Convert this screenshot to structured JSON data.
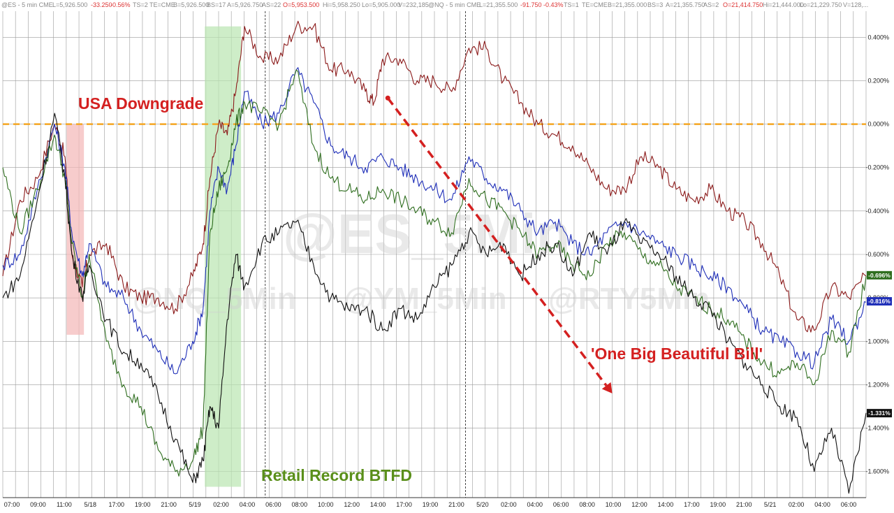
{
  "header": {
    "es": {
      "symbol": "@ES - 5 min CME",
      "L": "L=5,926.500",
      "chg": "-33.250",
      "pct": "-0.56%",
      "TS": "TS=2",
      "TE": "TE=CME",
      "B": "B=5,926.500",
      "BS": "BS=17",
      "A": "A=5,926.750",
      "AS": "AS=22",
      "O": "O=5,953.500",
      "Hi": "Hi=5,958.250",
      "Lo": "Lo=5,905.000",
      "V": "V=232,185"
    },
    "nq": {
      "symbol": "@NQ - 5 min CME",
      "L": "L=21,355.500",
      "chg": "-91.750",
      "pct": "-0.43%",
      "TS": "TS=1",
      "TE": "TE=CME",
      "B": "B=21,355.000",
      "BS": "BS=3",
      "A": "A=21,355.750",
      "AS": "AS=2",
      "O": "O=21,414.750",
      "Hi": "Hi=21,444.000",
      "Lo": "Lo=21,229.750",
      "V": "V=128,..."
    }
  },
  "watermarks": {
    "main": "@ES_5Min",
    "nq": "@NQ_5Min",
    "ym": "@YM_5Min",
    "rty": "@RTY5Min"
  },
  "annotations": {
    "downgrade": "USA Downgrade",
    "retail": "Retail Record BTFD",
    "bill": "'One Big Beautiful Bill'"
  },
  "colors": {
    "es": "#8b1a1a",
    "nq": "#1f2fb8",
    "ym": "#2f6e1f",
    "rty": "#111111",
    "zero_line": "#f5a623",
    "downgrade_band": "#f4b6b6",
    "retail_band": "#b9e5b0",
    "trend_arrow": "#d42020"
  },
  "chart_data": {
    "type": "line",
    "ylabel_format": "percent",
    "ylim": [
      -1.72,
      0.52
    ],
    "yticks": [
      "0.400%",
      "0.200%",
      "0.000%",
      "-0.200%",
      "-0.400%",
      "-0.600%",
      "-0.800%",
      "-1.000%",
      "-1.200%",
      "-1.400%",
      "-1.600%"
    ],
    "ytick_values": [
      0.4,
      0.2,
      0.0,
      -0.2,
      -0.4,
      -0.6,
      -0.8,
      -1.0,
      -1.2,
      -1.4,
      -1.6
    ],
    "xlabels": [
      "07:00",
      "09:00",
      "11:00",
      "5/18",
      "17:00",
      "19:00",
      "21:00",
      "5/19",
      "02:00",
      "04:00",
      "06:00",
      "08:00",
      "10:00",
      "12:00",
      "14:00",
      "17:00",
      "19:00",
      "21:00",
      "5/20",
      "02:00",
      "04:00",
      "06:00",
      "08:00",
      "10:00",
      "12:00",
      "14:00",
      "17:00",
      "19:00",
      "21:00",
      "5/21",
      "02:00",
      "04:00",
      "06:00"
    ],
    "last_values": [
      {
        "series": "YM",
        "label": "-0.696%",
        "value": -0.696,
        "color": "#2f6e1f"
      },
      {
        "series": "NQ",
        "label": "-0.816%",
        "value": -0.816,
        "color": "#1f2fb8"
      },
      {
        "series": "RTY",
        "label": "-1.331%",
        "value": -1.331,
        "color": "#111111"
      }
    ],
    "reference_line": 0.0,
    "series": [
      {
        "color": "#8b1a1a",
        "points": [
          [
            0,
            -0.7
          ],
          [
            1,
            -0.35
          ],
          [
            2,
            -0.25
          ],
          [
            3,
            0.0
          ],
          [
            3.6,
            -0.15
          ],
          [
            4,
            -0.6
          ],
          [
            4.6,
            -0.75
          ],
          [
            5,
            -0.6
          ],
          [
            6,
            -0.55
          ],
          [
            7,
            -0.75
          ],
          [
            8,
            -0.8
          ],
          [
            9,
            -0.8
          ],
          [
            10,
            -0.85
          ],
          [
            11,
            -0.7
          ],
          [
            11.6,
            -0.55
          ],
          [
            12,
            -0.25
          ],
          [
            12.5,
            0.0
          ],
          [
            13,
            -0.05
          ],
          [
            13.5,
            0.15
          ],
          [
            14,
            0.45
          ],
          [
            15,
            0.3
          ],
          [
            16,
            0.3
          ],
          [
            17,
            0.45
          ],
          [
            18,
            0.45
          ],
          [
            19,
            0.25
          ],
          [
            20,
            0.25
          ],
          [
            21,
            0.15
          ],
          [
            21.5,
            0.1
          ],
          [
            22,
            0.3
          ],
          [
            23,
            0.3
          ],
          [
            24,
            0.2
          ],
          [
            25,
            0.2
          ],
          [
            26,
            0.15
          ],
          [
            27,
            0.35
          ],
          [
            28,
            0.35
          ],
          [
            29,
            0.2
          ],
          [
            30,
            0.1
          ],
          [
            31,
            0.0
          ],
          [
            32,
            -0.05
          ],
          [
            33,
            -0.1
          ],
          [
            34,
            -0.2
          ],
          [
            35,
            -0.3
          ],
          [
            36,
            -0.3
          ],
          [
            37,
            -0.15
          ],
          [
            38,
            -0.2
          ],
          [
            39,
            -0.3
          ],
          [
            40,
            -0.35
          ],
          [
            41,
            -0.3
          ],
          [
            42,
            -0.4
          ],
          [
            43,
            -0.45
          ],
          [
            44,
            -0.55
          ],
          [
            45,
            -0.7
          ],
          [
            46,
            -0.9
          ],
          [
            47,
            -0.95
          ],
          [
            48,
            -0.75
          ],
          [
            49,
            -0.8
          ],
          [
            50,
            -0.7
          ]
        ]
      },
      {
        "color": "#1f2fb8",
        "points": [
          [
            0,
            -0.65
          ],
          [
            1,
            -0.6
          ],
          [
            2,
            -0.3
          ],
          [
            3,
            0.0
          ],
          [
            3.6,
            -0.2
          ],
          [
            4,
            -0.5
          ],
          [
            4.6,
            -0.7
          ],
          [
            5,
            -0.55
          ],
          [
            6,
            -0.75
          ],
          [
            7,
            -0.8
          ],
          [
            8,
            -0.95
          ],
          [
            9,
            -1.05
          ],
          [
            10,
            -1.15
          ],
          [
            11,
            -1.0
          ],
          [
            11.6,
            -0.85
          ],
          [
            12,
            -0.4
          ],
          [
            12.5,
            -0.2
          ],
          [
            13,
            -0.3
          ],
          [
            13.5,
            -0.1
          ],
          [
            14,
            0.15
          ],
          [
            15,
            0.0
          ],
          [
            16,
            0.05
          ],
          [
            17,
            0.25
          ],
          [
            18,
            0.1
          ],
          [
            19,
            -0.1
          ],
          [
            20,
            -0.15
          ],
          [
            21,
            -0.2
          ],
          [
            22,
            -0.15
          ],
          [
            23,
            -0.2
          ],
          [
            24,
            -0.25
          ],
          [
            25,
            -0.3
          ],
          [
            26,
            -0.35
          ],
          [
            27,
            -0.15
          ],
          [
            28,
            -0.25
          ],
          [
            29,
            -0.3
          ],
          [
            30,
            -0.4
          ],
          [
            31,
            -0.5
          ],
          [
            32,
            -0.45
          ],
          [
            33,
            -0.55
          ],
          [
            34,
            -0.6
          ],
          [
            35,
            -0.5
          ],
          [
            36,
            -0.45
          ],
          [
            37,
            -0.5
          ],
          [
            38,
            -0.55
          ],
          [
            39,
            -0.6
          ],
          [
            40,
            -0.65
          ],
          [
            41,
            -0.7
          ],
          [
            42,
            -0.75
          ],
          [
            43,
            -0.85
          ],
          [
            44,
            -0.95
          ],
          [
            45,
            -1.0
          ],
          [
            46,
            -1.05
          ],
          [
            47,
            -1.1
          ],
          [
            48,
            -0.9
          ],
          [
            49,
            -1.0
          ],
          [
            50,
            -0.82
          ]
        ]
      },
      {
        "color": "#2f6e1f",
        "points": [
          [
            0,
            -0.2
          ],
          [
            1,
            -0.5
          ],
          [
            2,
            -0.3
          ],
          [
            3,
            -0.05
          ],
          [
            3.6,
            -0.25
          ],
          [
            4,
            -0.55
          ],
          [
            4.6,
            -0.8
          ],
          [
            5,
            -0.6
          ],
          [
            6,
            -1.0
          ],
          [
            7,
            -1.2
          ],
          [
            8,
            -1.3
          ],
          [
            9,
            -1.5
          ],
          [
            10,
            -1.6
          ],
          [
            11,
            -1.55
          ],
          [
            11.6,
            -1.4
          ],
          [
            12,
            -0.5
          ],
          [
            12.5,
            -0.3
          ],
          [
            13,
            -0.2
          ],
          [
            13.5,
            0.0
          ],
          [
            14,
            0.1
          ],
          [
            15,
            0.05
          ],
          [
            16,
            0.0
          ],
          [
            17,
            0.25
          ],
          [
            18,
            -0.1
          ],
          [
            19,
            -0.25
          ],
          [
            20,
            -0.3
          ],
          [
            21,
            -0.35
          ],
          [
            22,
            -0.3
          ],
          [
            23,
            -0.35
          ],
          [
            24,
            -0.4
          ],
          [
            25,
            -0.45
          ],
          [
            26,
            -0.5
          ],
          [
            27,
            -0.25
          ],
          [
            28,
            -0.35
          ],
          [
            29,
            -0.4
          ],
          [
            30,
            -0.5
          ],
          [
            31,
            -0.6
          ],
          [
            32,
            -0.55
          ],
          [
            33,
            -0.65
          ],
          [
            34,
            -0.7
          ],
          [
            35,
            -0.55
          ],
          [
            36,
            -0.5
          ],
          [
            37,
            -0.6
          ],
          [
            38,
            -0.65
          ],
          [
            39,
            -0.75
          ],
          [
            40,
            -0.8
          ],
          [
            41,
            -0.85
          ],
          [
            42,
            -0.9
          ],
          [
            43,
            -1.0
          ],
          [
            44,
            -1.1
          ],
          [
            45,
            -1.15
          ],
          [
            46,
            -1.1
          ],
          [
            47,
            -1.2
          ],
          [
            48,
            -0.95
          ],
          [
            49,
            -1.05
          ],
          [
            50,
            -0.7
          ]
        ]
      },
      {
        "color": "#111111",
        "points": [
          [
            0,
            -0.8
          ],
          [
            1,
            -0.7
          ],
          [
            2,
            -0.35
          ],
          [
            3,
            0.05
          ],
          [
            3.6,
            -0.25
          ],
          [
            4,
            -0.6
          ],
          [
            4.6,
            -0.8
          ],
          [
            5,
            -0.65
          ],
          [
            6,
            -0.9
          ],
          [
            7,
            -1.05
          ],
          [
            8,
            -1.1
          ],
          [
            9,
            -1.25
          ],
          [
            10,
            -1.45
          ],
          [
            11,
            -1.65
          ],
          [
            11.6,
            -1.55
          ],
          [
            12,
            -1.3
          ],
          [
            12.5,
            -1.4
          ],
          [
            13,
            -0.9
          ],
          [
            13.5,
            -0.6
          ],
          [
            14,
            -0.75
          ],
          [
            15,
            -0.55
          ],
          [
            16,
            -0.5
          ],
          [
            17,
            -0.45
          ],
          [
            18,
            -0.65
          ],
          [
            19,
            -0.8
          ],
          [
            20,
            -0.85
          ],
          [
            21,
            -0.85
          ],
          [
            22,
            -0.95
          ],
          [
            23,
            -0.85
          ],
          [
            24,
            -0.9
          ],
          [
            25,
            -0.75
          ],
          [
            26,
            -0.65
          ],
          [
            27,
            -0.5
          ],
          [
            28,
            -0.6
          ],
          [
            29,
            -0.55
          ],
          [
            30,
            -0.7
          ],
          [
            31,
            -0.6
          ],
          [
            32,
            -0.55
          ],
          [
            33,
            -0.7
          ],
          [
            34,
            -0.5
          ],
          [
            35,
            -0.6
          ],
          [
            36,
            -0.45
          ],
          [
            37,
            -0.55
          ],
          [
            38,
            -0.6
          ],
          [
            39,
            -0.7
          ],
          [
            40,
            -0.8
          ],
          [
            41,
            -0.85
          ],
          [
            42,
            -1.0
          ],
          [
            43,
            -1.1
          ],
          [
            44,
            -1.2
          ],
          [
            45,
            -1.3
          ],
          [
            46,
            -1.35
          ],
          [
            47,
            -1.6
          ],
          [
            48,
            -1.4
          ],
          [
            49,
            -1.7
          ],
          [
            50,
            -1.33
          ]
        ]
      }
    ],
    "highlight_bands": [
      {
        "name": "downgrade",
        "x0": 3.7,
        "x1": 4.7,
        "y0": 0.0,
        "y1": -0.97
      },
      {
        "name": "retail",
        "x0": 11.7,
        "x1": 13.8,
        "y0": 0.45,
        "y1": -1.67
      }
    ],
    "trend_arrow": {
      "from": [
        22.3,
        0.12
      ],
      "to": [
        35.3,
        -1.24
      ]
    }
  }
}
